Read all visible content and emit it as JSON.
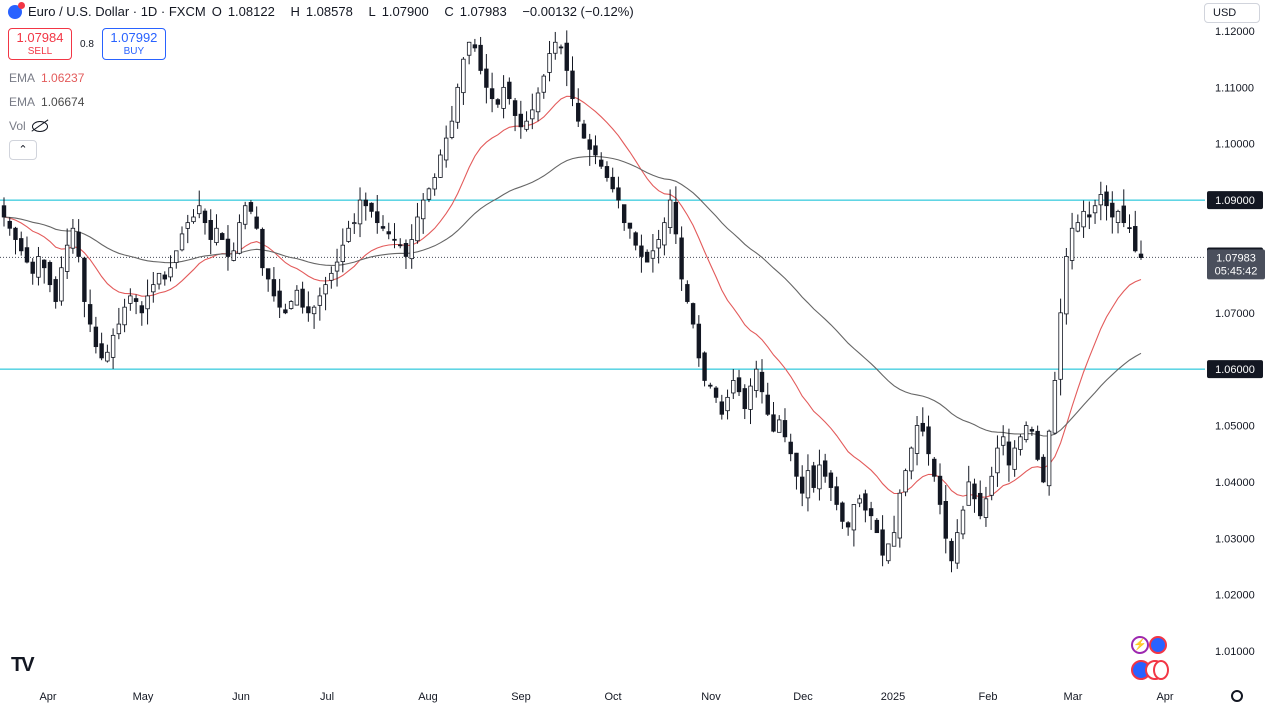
{
  "header": {
    "symbol": "Euro / U.S. Dollar · 1D · FXCM",
    "o_label": "O",
    "o": "1.08122",
    "h_label": "H",
    "h": "1.08578",
    "l_label": "L",
    "l": "1.07900",
    "c_label": "C",
    "c": "1.07983",
    "change": "−0.00132 (−0.12%)"
  },
  "trade": {
    "sell_price": "1.07984",
    "sell_label": "SELL",
    "spread": "0.8",
    "buy_price": "1.07992",
    "buy_label": "BUY"
  },
  "indicators": {
    "ema1_label": "EMA",
    "ema1_value": "1.06237",
    "ema2_label": "EMA",
    "ema2_value": "1.06674",
    "vol_label": "Vol"
  },
  "currency": "USD",
  "colors": {
    "up": "#131722",
    "down": "#131722",
    "ema_fast": "#e35b5b",
    "ema_slow": "#666666",
    "hline": "#00bcd4",
    "last_price_bg": "#4a4f5c",
    "price_label_bg": "#131722"
  },
  "chart_data": {
    "type": "candlestick",
    "y_ticks": [
      "1.12000",
      "1.11000",
      "1.10000",
      "1.09000",
      "1.08000",
      "1.07000",
      "1.06000",
      "1.05000",
      "1.04000",
      "1.03000",
      "1.02000",
      "1.01000"
    ],
    "x_ticks": [
      "Apr",
      "May",
      "Jun",
      "Jul",
      "Aug",
      "Sep",
      "Oct",
      "Nov",
      "Dec",
      "2025",
      "Feb",
      "Mar",
      "Apr"
    ],
    "ylim": [
      1.0045,
      1.1255
    ],
    "horizontal_lines": [
      {
        "value": 1.09,
        "label": "1.09000"
      },
      {
        "value": 1.06,
        "label": "1.06000"
      }
    ],
    "scale_labels": [
      {
        "value": 1.08,
        "label": "1.08000"
      }
    ],
    "last_price": {
      "value": 1.07983,
      "label": "1.07983",
      "countdown": "05:45:42"
    },
    "ema_fast_name": "EMA",
    "ema_slow_name": "EMA",
    "closes": [
      1.087,
      1.085,
      1.083,
      1.081,
      1.079,
      1.077,
      1.08,
      1.078,
      1.075,
      1.072,
      1.078,
      1.082,
      1.085,
      1.08,
      1.072,
      1.068,
      1.064,
      1.062,
      1.063,
      1.066,
      1.068,
      1.071,
      1.073,
      1.072,
      1.07,
      1.073,
      1.075,
      1.077,
      1.076,
      1.078,
      1.081,
      1.084,
      1.086,
      1.087,
      1.089,
      1.086,
      1.083,
      1.085,
      1.083,
      1.08,
      1.081,
      1.086,
      1.089,
      1.088,
      1.085,
      1.078,
      1.076,
      1.073,
      1.071,
      1.07,
      1.072,
      1.074,
      1.071,
      1.07,
      1.071,
      1.073,
      1.075,
      1.077,
      1.079,
      1.082,
      1.085,
      1.086,
      1.09,
      1.089,
      1.088,
      1.086,
      1.085,
      1.084,
      1.083,
      1.082,
      1.08,
      1.083,
      1.087,
      1.09,
      1.092,
      1.094,
      1.098,
      1.101,
      1.104,
      1.11,
      1.115,
      1.118,
      1.117,
      1.113,
      1.11,
      1.108,
      1.107,
      1.11,
      1.108,
      1.105,
      1.103,
      1.104,
      1.106,
      1.109,
      1.112,
      1.116,
      1.118,
      1.117,
      1.113,
      1.108,
      1.104,
      1.101,
      1.099,
      1.098,
      1.096,
      1.094,
      1.092,
      1.09,
      1.086,
      1.085,
      1.082,
      1.08,
      1.079,
      1.081,
      1.083,
      1.086,
      1.09,
      1.084,
      1.076,
      1.072,
      1.068,
      1.062,
      1.058,
      1.057,
      1.055,
      1.052,
      1.055,
      1.058,
      1.056,
      1.053,
      1.057,
      1.06,
      1.056,
      1.052,
      1.049,
      1.051,
      1.048,
      1.045,
      1.041,
      1.038,
      1.042,
      1.039,
      1.043,
      1.041,
      1.039,
      1.036,
      1.033,
      1.032,
      1.036,
      1.037,
      1.035,
      1.034,
      1.031,
      1.027,
      1.029,
      1.031,
      1.038,
      1.042,
      1.046,
      1.05,
      1.049,
      1.045,
      1.041,
      1.036,
      1.03,
      1.026,
      1.031,
      1.035,
      1.04,
      1.037,
      1.034,
      1.037,
      1.041,
      1.046,
      1.048,
      1.043,
      1.046,
      1.048,
      1.05,
      1.049,
      1.044,
      1.04,
      1.049,
      1.058,
      1.07,
      1.08,
      1.085,
      1.086,
      1.088,
      1.087,
      1.089,
      1.091,
      1.089,
      1.087,
      1.088,
      1.086,
      1.085,
      1.081,
      1.0798
    ]
  }
}
